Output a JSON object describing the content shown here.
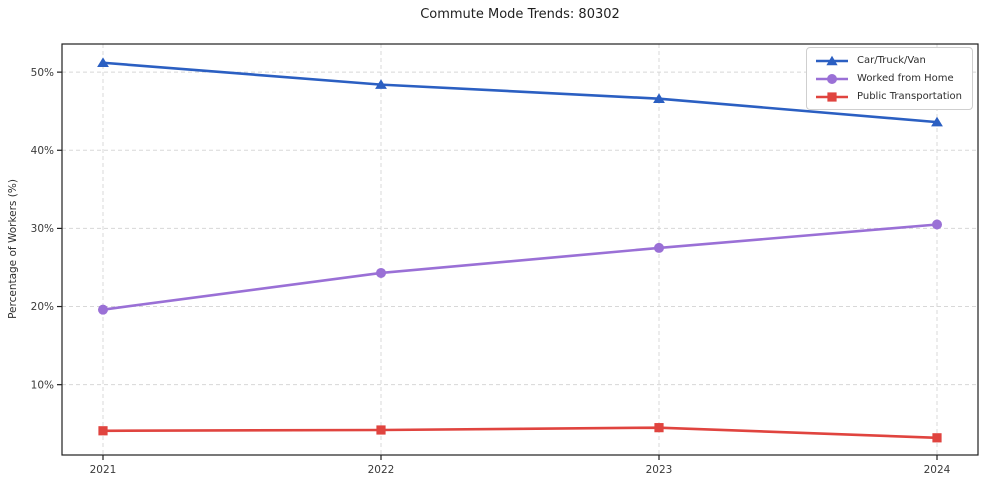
{
  "figure": {
    "title": "Commute Mode Trends: 80302",
    "background_color": "#ffffff",
    "frame_color": "#1f1f1f",
    "grid_color": "#d8d8d8",
    "tick_label_color": "#3a3a3a"
  },
  "chart_data": {
    "type": "line",
    "title": "Commute Mode Trends: 80302",
    "xlabel": "",
    "ylabel": "Percentage of Workers (%)",
    "categories": [
      "2021",
      "2022",
      "2023",
      "2024"
    ],
    "series": [
      {
        "name": "Car/Truck/Van",
        "color": "#2b5fc2",
        "marker": "triangle",
        "values": [
          51.2,
          48.4,
          46.6,
          43.6
        ]
      },
      {
        "name": "Worked from Home",
        "color": "#9a70d6",
        "marker": "circle",
        "values": [
          19.6,
          24.3,
          27.5,
          30.5
        ]
      },
      {
        "name": "Public Transportation",
        "color": "#e0443f",
        "marker": "square",
        "values": [
          4.1,
          4.2,
          4.5,
          3.2
        ]
      }
    ],
    "ylim": [
      1.0,
      53.6
    ],
    "yticks": [
      10,
      20,
      30,
      40,
      50
    ],
    "ytick_labels": [
      "10%",
      "20%",
      "30%",
      "40%",
      "50%"
    ],
    "grid": true,
    "grid_style": "dashed",
    "legend_position": "upper right"
  }
}
